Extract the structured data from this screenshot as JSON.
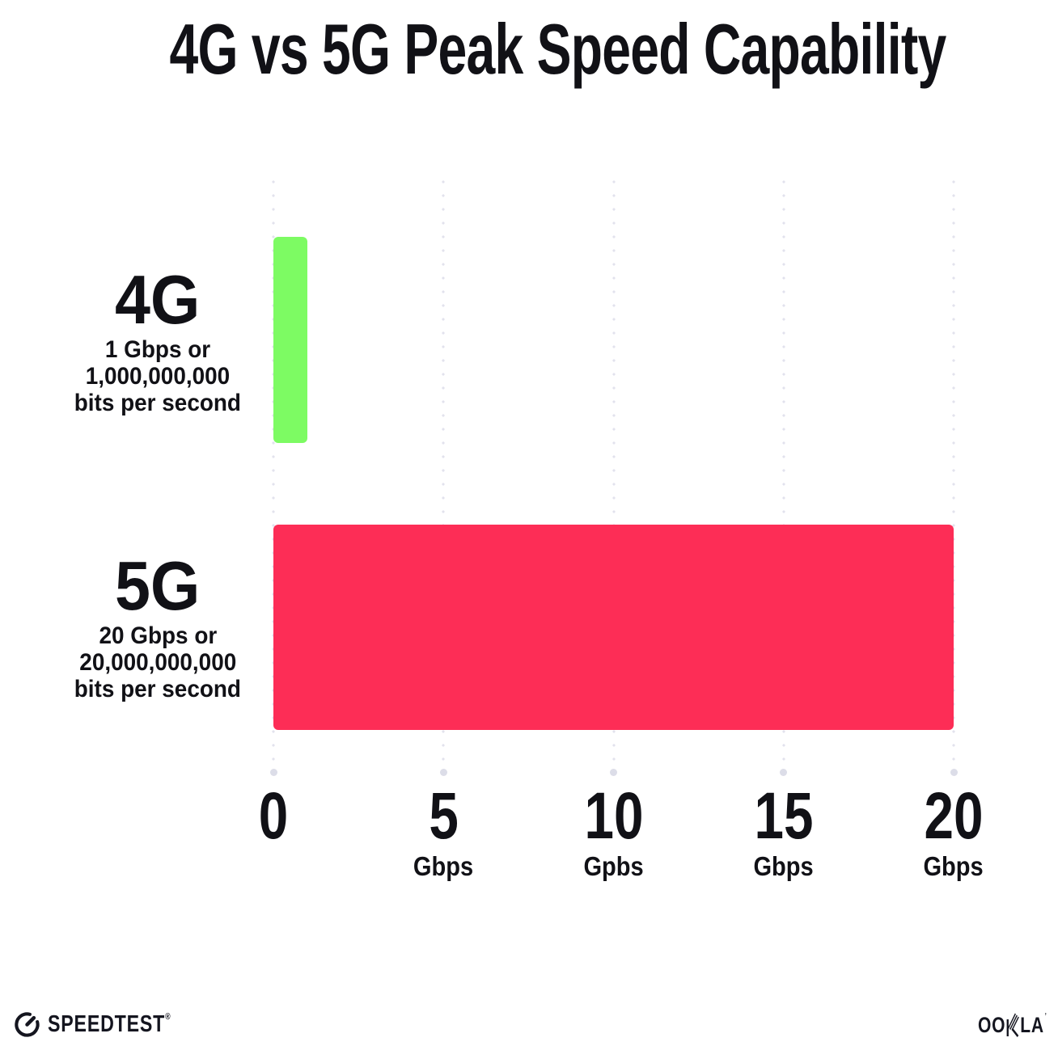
{
  "title": "4G vs 5G Peak Speed Capability",
  "chart_data": {
    "type": "bar",
    "orientation": "horizontal",
    "title": "4G vs 5G Peak Speed Capability",
    "xlabel": "",
    "ylabel": "",
    "xlim": [
      0,
      20
    ],
    "x_tick_interval": 5,
    "grid": "vertical dotted gridlines",
    "legend": "none",
    "categories": [
      "4G",
      "5G"
    ],
    "values": [
      1,
      20
    ],
    "series": [
      {
        "label": "4G",
        "value": 1,
        "color": "#7dfb63",
        "sublabel_lines": [
          "1 Gbps or",
          "1,000,000,000",
          "bits per second"
        ]
      },
      {
        "label": "5G",
        "value": 20,
        "color": "#fd2d56",
        "sublabel_lines": [
          "20 Gbps or",
          "20,000,000,000",
          "bits per second"
        ]
      }
    ],
    "x_ticks": [
      {
        "value": "0",
        "unit": ""
      },
      {
        "value": "5",
        "unit": "Gbps"
      },
      {
        "value": "10",
        "unit": "Gpbs"
      },
      {
        "value": "15",
        "unit": "Gbps"
      },
      {
        "value": "20",
        "unit": "Gbps"
      }
    ]
  },
  "footer": {
    "speedtest_label": "SPEEDTEST",
    "speedtest_trademark": "®",
    "ookla_label": "OOKLA",
    "ookla_prefix": "OO",
    "ookla_suffix": "LA",
    "ookla_trademark": "’"
  },
  "colors": {
    "background": "#ffffff",
    "text": "#111116",
    "bar_4g": "#7dfb63",
    "bar_5g": "#fd2d56",
    "grid_dot": "#e2e2ed",
    "grid_end_dot": "#dcdde8"
  }
}
